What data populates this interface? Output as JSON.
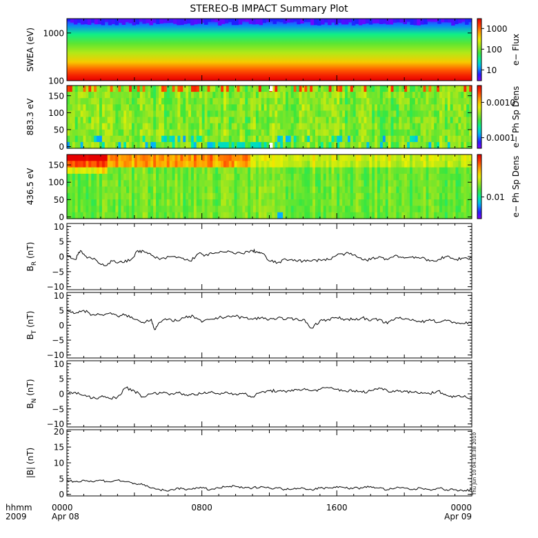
{
  "figure": {
    "title": "STEREO-B IMPACT Summary Plot",
    "timestamp": "Thu Jun 10 04:18:38 2010",
    "x_corner_top": "hhmm",
    "x_corner_bottom": "2009"
  },
  "colors": {
    "background": "#ffffff",
    "foreground": "#000000",
    "colormap": [
      "#7f00ff",
      "#1f1fff",
      "#00b4ff",
      "#00f0a0",
      "#3ce63c",
      "#a0e61e",
      "#f0f000",
      "#ffa000",
      "#ff3c00",
      "#e60000"
    ]
  },
  "chart_data": [
    {
      "id": "swea",
      "type": "heatmap",
      "ylabel": "SWEA (eV)",
      "yscale": "log",
      "ylim": [
        100,
        2000
      ],
      "yticks": [
        {
          "v": 100,
          "label": "100"
        },
        {
          "v": 1000,
          "label": "1000"
        }
      ],
      "colorbar": {
        "label": "e− Flux",
        "scale": "log",
        "range": [
          3,
          3000
        ],
        "ticks": [
          {
            "v": 10,
            "label": "10"
          },
          {
            "v": 100,
            "label": "100"
          },
          {
            "v": 1000,
            "label": "1000"
          }
        ]
      }
    },
    {
      "id": "pad-883",
      "type": "heatmap",
      "ylabel": "883.3 eV",
      "ylim": [
        -5,
        180
      ],
      "yticks": [
        {
          "v": 0,
          "label": "0"
        },
        {
          "v": 50,
          "label": "50"
        },
        {
          "v": 100,
          "label": "100"
        },
        {
          "v": 150,
          "label": "150"
        }
      ],
      "data_gap_hours": [
        12.0,
        12.2
      ],
      "colorbar": {
        "label": "e− Ph Sp Dens",
        "scale": "log",
        "range": [
          5e-05,
          0.003
        ],
        "ticks": [
          {
            "v": 0.0001,
            "label": "0.0001"
          },
          {
            "v": 0.001,
            "label": "0.0010"
          }
        ]
      }
    },
    {
      "id": "pad-436",
      "type": "heatmap",
      "ylabel": "436.5 eV",
      "ylim": [
        -5,
        180
      ],
      "yticks": [
        {
          "v": 0,
          "label": "0"
        },
        {
          "v": 50,
          "label": "50"
        },
        {
          "v": 100,
          "label": "100"
        },
        {
          "v": 150,
          "label": "150"
        }
      ],
      "colorbar": {
        "label": "e− Ph Sp Dens",
        "scale": "log",
        "range": [
          0.004,
          0.06
        ],
        "ticks": [
          {
            "v": 0.01,
            "label": "0.01"
          }
        ]
      }
    },
    {
      "id": "br",
      "type": "line",
      "ylabel_main": "B",
      "ylabel_sub": "R",
      "ylabel_unit": "(nT)",
      "ylim": [
        -11,
        11
      ],
      "yticks": [
        {
          "v": -10,
          "label": "−10"
        },
        {
          "v": -5,
          "label": "−5"
        },
        {
          "v": 0,
          "label": "0"
        },
        {
          "v": 5,
          "label": "5"
        },
        {
          "v": 10,
          "label": "10"
        }
      ],
      "series": [
        {
          "x_hours": [
            0,
            0.5,
            0.8,
            1.2,
            1.7,
            2.2,
            2.7,
            3.3,
            3.8,
            4.2,
            4.6,
            5.0,
            5.5,
            6.2,
            6.8,
            7.3,
            7.8,
            8.2,
            8.7,
            9.3,
            9.8,
            10.4,
            11.0,
            11.3,
            11.6,
            12.0,
            12.5,
            13.0,
            13.5,
            14.0,
            14.5,
            15.0,
            15.5,
            16.0,
            16.5,
            17.0,
            17.5,
            18.0,
            18.5,
            19.0,
            19.5,
            20.0,
            20.5,
            21.0,
            21.5,
            22.0,
            22.5,
            23.0,
            23.5,
            24.0
          ],
          "y": [
            0.5,
            -1.0,
            2.0,
            -0.5,
            -1.0,
            -3.0,
            -1.5,
            -2.0,
            -1.0,
            2.0,
            1.5,
            0.5,
            -1.0,
            0.0,
            -0.5,
            -1.5,
            1.0,
            0.5,
            1.0,
            1.5,
            1.5,
            1.0,
            2.0,
            1.5,
            1.0,
            -1.5,
            -2.0,
            -1.0,
            -1.0,
            -1.5,
            -1.5,
            -1.0,
            -1.0,
            0.5,
            1.0,
            0.5,
            -1.0,
            -1.0,
            0.0,
            -1.0,
            0.5,
            -0.5,
            0.0,
            -0.5,
            -1.5,
            -1.0,
            0.0,
            -1.0,
            -0.5,
            -0.5
          ]
        }
      ]
    },
    {
      "id": "bt",
      "type": "line",
      "ylabel_main": "B",
      "ylabel_sub": "T",
      "ylabel_unit": "(nT)",
      "ylim": [
        -11,
        11
      ],
      "yticks": [
        {
          "v": -10,
          "label": "−10"
        },
        {
          "v": -5,
          "label": "−5"
        },
        {
          "v": 0,
          "label": "0"
        },
        {
          "v": 5,
          "label": "5"
        },
        {
          "v": 10,
          "label": "10"
        }
      ],
      "series": [
        {
          "x_hours": [
            0,
            0.5,
            1.0,
            1.5,
            2.0,
            2.5,
            3.0,
            3.5,
            4.0,
            4.5,
            5.0,
            5.2,
            5.5,
            6.0,
            6.5,
            7.0,
            7.5,
            8.0,
            8.5,
            9.0,
            9.5,
            10.0,
            10.5,
            11.0,
            11.5,
            12.0,
            12.5,
            13.0,
            13.5,
            14.0,
            14.5,
            15.0,
            15.5,
            16.0,
            16.5,
            17.0,
            17.5,
            18.0,
            18.5,
            19.0,
            19.5,
            20.0,
            20.5,
            21.0,
            21.5,
            22.0,
            22.5,
            23.0,
            23.5,
            24.0
          ],
          "y": [
            5.0,
            4.0,
            5.0,
            3.5,
            3.5,
            4.0,
            3.0,
            3.5,
            2.0,
            1.0,
            2.0,
            -1.5,
            1.0,
            2.0,
            1.5,
            2.5,
            3.0,
            1.0,
            2.0,
            2.5,
            3.0,
            3.0,
            2.5,
            2.0,
            2.5,
            2.0,
            2.5,
            2.0,
            2.0,
            2.0,
            -1.0,
            1.5,
            2.0,
            2.5,
            2.0,
            2.0,
            2.5,
            1.5,
            2.0,
            0.5,
            2.5,
            2.0,
            2.0,
            1.0,
            2.0,
            1.0,
            1.5,
            1.0,
            0.5,
            1.0
          ]
        }
      ]
    },
    {
      "id": "bn",
      "type": "line",
      "ylabel_main": "B",
      "ylabel_sub": "N",
      "ylabel_unit": "(nT)",
      "ylim": [
        -11,
        11
      ],
      "yticks": [
        {
          "v": -10,
          "label": "−10"
        },
        {
          "v": -5,
          "label": "−5"
        },
        {
          "v": 0,
          "label": "0"
        },
        {
          "v": 5,
          "label": "5"
        },
        {
          "v": 10,
          "label": "10"
        }
      ],
      "series": [
        {
          "x_hours": [
            0,
            0.5,
            1.0,
            1.5,
            2.0,
            2.5,
            3.0,
            3.5,
            4.0,
            4.5,
            5.0,
            5.5,
            6.0,
            6.5,
            7.0,
            7.5,
            8.0,
            8.5,
            9.0,
            9.5,
            10.0,
            10.5,
            11.0,
            11.5,
            12.0,
            12.5,
            13.0,
            13.5,
            14.0,
            14.5,
            15.0,
            15.5,
            16.0,
            16.5,
            17.0,
            17.5,
            18.0,
            18.5,
            19.0,
            19.5,
            20.0,
            20.5,
            21.0,
            21.5,
            22.0,
            22.5,
            23.0,
            23.5,
            24.0
          ],
          "y": [
            0.0,
            0.5,
            -0.5,
            -1.5,
            -1.0,
            -1.5,
            -1.0,
            2.0,
            1.0,
            -1.0,
            0.0,
            0.5,
            0.0,
            0.5,
            -0.5,
            0.0,
            0.0,
            0.5,
            0.0,
            0.5,
            0.0,
            0.0,
            -1.0,
            0.5,
            1.0,
            1.0,
            0.5,
            1.5,
            1.5,
            1.0,
            1.5,
            2.0,
            1.5,
            1.0,
            1.0,
            0.5,
            1.0,
            2.0,
            1.0,
            1.0,
            1.0,
            0.5,
            0.5,
            0.0,
            1.0,
            -0.5,
            -1.0,
            -1.0,
            -1.5
          ]
        }
      ]
    },
    {
      "id": "bmag",
      "type": "line",
      "ylabel_main": "|B|",
      "ylabel_sub": "",
      "ylabel_unit": "(nT)",
      "ylim": [
        -0.5,
        20.5
      ],
      "yticks": [
        {
          "v": 0,
          "label": "0"
        },
        {
          "v": 5,
          "label": "5"
        },
        {
          "v": 10,
          "label": "10"
        },
        {
          "v": 15,
          "label": "15"
        },
        {
          "v": 20,
          "label": "20"
        }
      ],
      "series": [
        {
          "x_hours": [
            0,
            0.5,
            1.0,
            1.5,
            2.0,
            2.5,
            3.0,
            3.5,
            4.0,
            4.5,
            5.0,
            5.5,
            6.0,
            6.5,
            7.0,
            7.5,
            8.0,
            8.5,
            9.0,
            9.5,
            10.0,
            10.5,
            11.0,
            11.5,
            12.0,
            12.5,
            13.0,
            13.5,
            14.0,
            14.5,
            15.0,
            15.5,
            16.0,
            16.5,
            17.0,
            17.5,
            18.0,
            18.5,
            19.0,
            19.5,
            20.0,
            20.5,
            21.0,
            21.5,
            22.0,
            22.5,
            23.0,
            23.5,
            24.0
          ],
          "y": [
            4.5,
            4.0,
            4.5,
            4.0,
            4.5,
            4.0,
            4.5,
            4.0,
            3.5,
            3.0,
            2.0,
            1.5,
            1.0,
            2.0,
            1.5,
            2.0,
            2.0,
            1.5,
            2.0,
            2.5,
            2.5,
            2.0,
            2.0,
            2.5,
            2.0,
            2.0,
            1.5,
            2.0,
            2.0,
            1.5,
            2.0,
            2.0,
            2.5,
            2.0,
            2.0,
            2.0,
            2.5,
            2.0,
            1.5,
            2.0,
            2.0,
            1.5,
            2.0,
            1.5,
            2.0,
            1.5,
            1.5,
            1.0,
            1.5
          ]
        }
      ]
    }
  ],
  "xaxis": {
    "range_hours": [
      0,
      24
    ],
    "major_ticks": [
      {
        "hours": 0,
        "label": "0000",
        "sublabel": "Apr 08"
      },
      {
        "hours": 8,
        "label": "0800",
        "sublabel": ""
      },
      {
        "hours": 16,
        "label": "1600",
        "sublabel": ""
      },
      {
        "hours": 24,
        "label": "0000",
        "sublabel": "Apr 09"
      }
    ],
    "minor_tick_hours": 1
  }
}
